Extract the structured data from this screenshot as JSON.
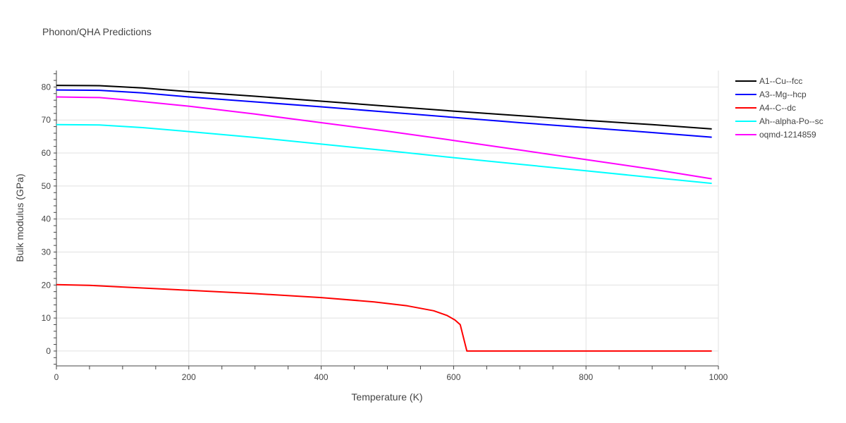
{
  "chart_data": {
    "type": "line",
    "title": "Phonon/QHA Predictions",
    "xlabel": "Temperature (K)",
    "ylabel": "Bulk modulus (GPa)",
    "xlim": [
      0,
      1000
    ],
    "ylim": [
      -4.5,
      85
    ],
    "x_ticks": [
      0,
      200,
      400,
      600,
      800,
      1000
    ],
    "y_ticks": [
      0,
      10,
      20,
      30,
      40,
      50,
      60,
      70,
      80
    ],
    "grid": true,
    "legend_position": "top-right",
    "series": [
      {
        "name": "A1--Cu--fcc",
        "color": "#000000",
        "x": [
          0,
          65,
          130,
          200,
          300,
          400,
          500,
          600,
          700,
          800,
          900,
          990
        ],
        "y": [
          80.5,
          80.4,
          79.7,
          78.6,
          77.2,
          75.7,
          74.2,
          72.7,
          71.3,
          69.9,
          68.6,
          67.3
        ]
      },
      {
        "name": "A3--Mg--hcp",
        "color": "#0000ff",
        "x": [
          0,
          65,
          130,
          200,
          300,
          400,
          500,
          600,
          700,
          800,
          900,
          990
        ],
        "y": [
          79.1,
          79.0,
          78.2,
          77.0,
          75.5,
          74.0,
          72.4,
          70.8,
          69.2,
          67.7,
          66.2,
          64.8
        ]
      },
      {
        "name": "A4--C--dc",
        "color": "#ff0000",
        "x": [
          0,
          50,
          100,
          200,
          300,
          400,
          480,
          530,
          570,
          590,
          602,
          610,
          620,
          700,
          800,
          900,
          990
        ],
        "y": [
          20.1,
          19.9,
          19.4,
          18.4,
          17.4,
          16.2,
          14.9,
          13.7,
          12.2,
          10.8,
          9.4,
          8.0,
          0,
          0,
          0,
          0,
          0
        ]
      },
      {
        "name": "Ah--alpha-Po--sc",
        "color": "#00ffff",
        "x": [
          0,
          65,
          130,
          200,
          300,
          400,
          500,
          600,
          700,
          800,
          900,
          990
        ],
        "y": [
          68.6,
          68.5,
          67.7,
          66.5,
          64.7,
          62.7,
          60.7,
          58.6,
          56.6,
          54.6,
          52.6,
          50.8
        ]
      },
      {
        "name": "oqmd-1214859",
        "color": "#ff00ff",
        "x": [
          0,
          65,
          100,
          200,
          300,
          400,
          500,
          600,
          700,
          800,
          900,
          990
        ],
        "y": [
          77.0,
          76.8,
          76.2,
          74.2,
          71.8,
          69.2,
          66.6,
          63.8,
          60.9,
          58.0,
          55.1,
          52.2
        ]
      }
    ]
  }
}
